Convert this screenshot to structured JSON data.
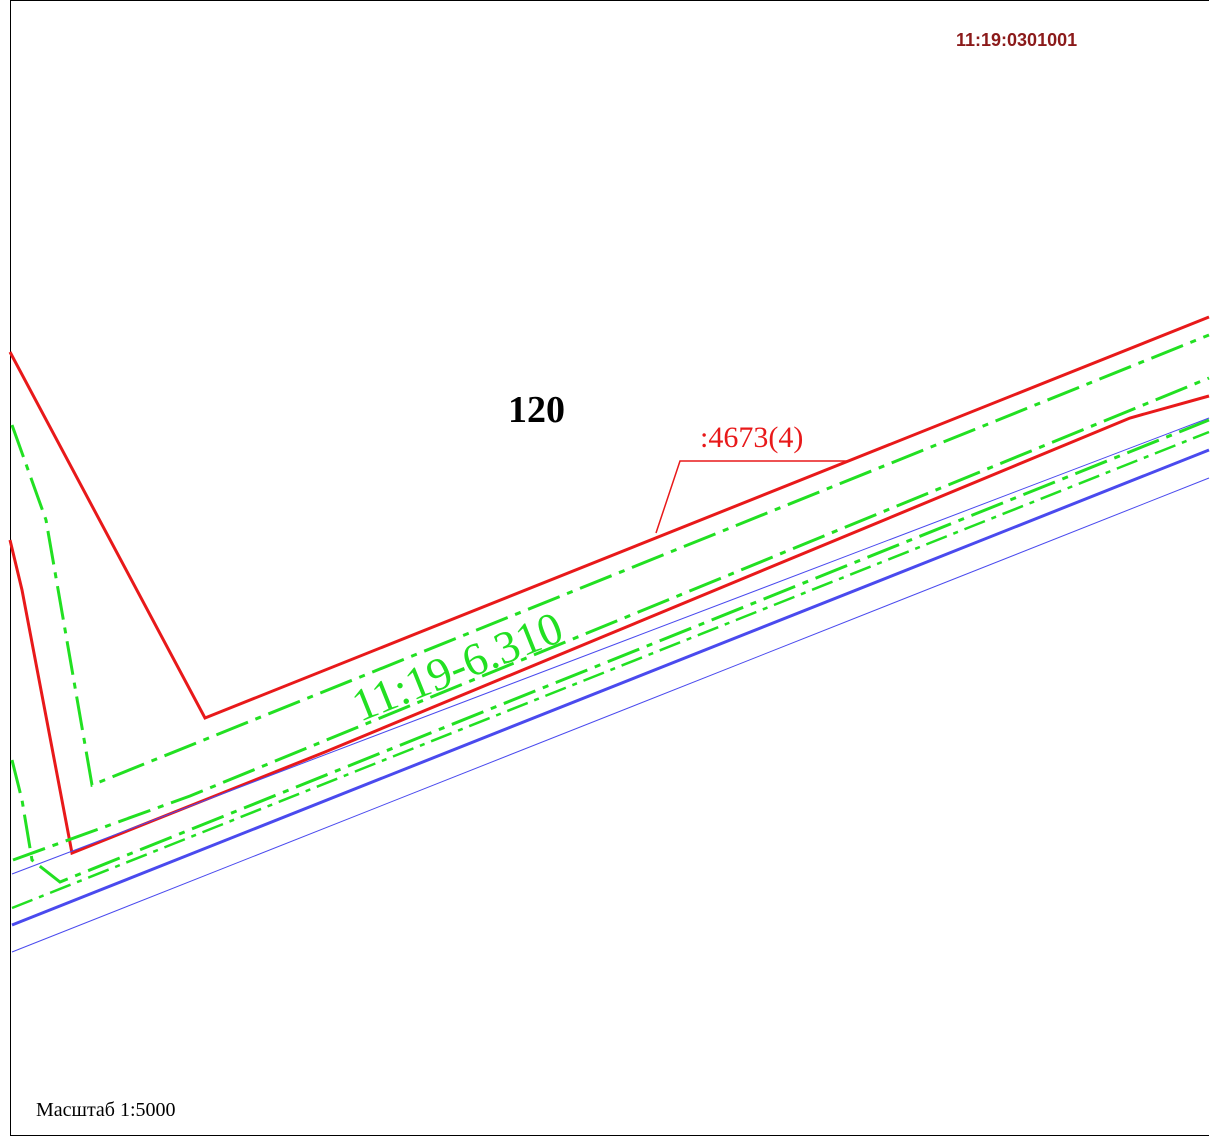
{
  "map": {
    "quarter_number": "11:19:0301001",
    "block_label": "120",
    "parcel_label": ":4673(4)",
    "zone_label": "11:19-6.310",
    "scale_text": "Масштаб 1:5000"
  },
  "colors": {
    "parcel_boundary": "#e8191a",
    "zone_boundary": "#22e022",
    "road_lines": "#4a4aee",
    "quarter_text": "#8b1a1a"
  }
}
